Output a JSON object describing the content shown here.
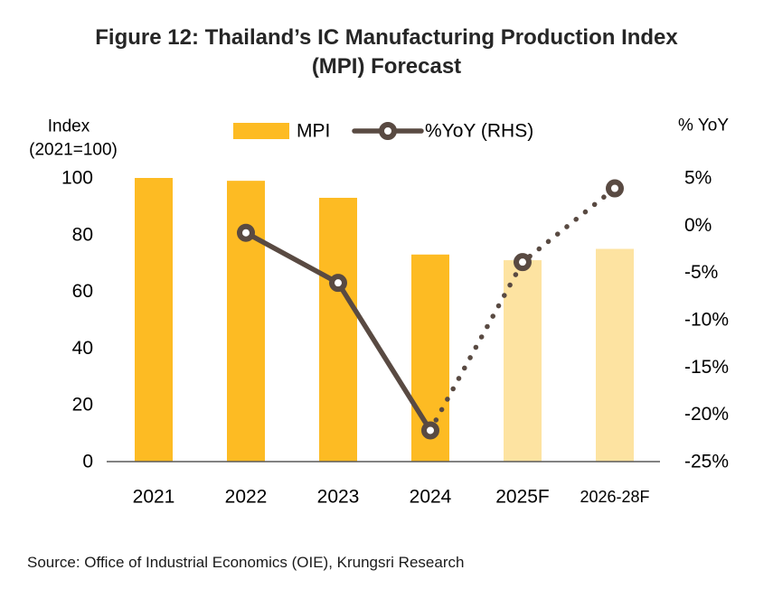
{
  "title": {
    "line1": "Figure 12: Thailand’s IC Manufacturing Production Index",
    "line2": "(MPI) Forecast"
  },
  "source": "Source: Office of Industrial Economics (OIE), Krungsri Research",
  "chart_data": {
    "type": "bar+line combo",
    "categories": [
      "2021",
      "2022",
      "2023",
      "2024",
      "2025F",
      "2026-28F"
    ],
    "series": [
      {
        "name": "MPI",
        "type": "bar",
        "axis": "left",
        "values": [
          100,
          99,
          93,
          73,
          71,
          75
        ],
        "forecast": [
          false,
          false,
          false,
          false,
          true,
          true
        ]
      },
      {
        "name": "%YoY (RHS)",
        "type": "line",
        "axis": "right",
        "values": [
          null,
          -0.8,
          -6.1,
          -21.7,
          -3.9,
          3.9
        ],
        "line_style": "solid through 2024, dotted for forecast points"
      }
    ],
    "left_axis": {
      "title_line1": "Index",
      "title_line2": "(2021=100)",
      "min": 0,
      "max": 100,
      "ticks": [
        {
          "label": "100",
          "value": 100
        },
        {
          "label": "80",
          "value": 80
        },
        {
          "label": "60",
          "value": 60
        },
        {
          "label": "40",
          "value": 40
        },
        {
          "label": "20",
          "value": 20
        },
        {
          "label": "0",
          "value": 0
        }
      ]
    },
    "right_axis": {
      "title": "% YoY",
      "min": -25,
      "max": 5,
      "ticks": [
        {
          "label": "5%",
          "value": 5
        },
        {
          "label": "0%",
          "value": 0
        },
        {
          "label": "-5%",
          "value": -5
        },
        {
          "label": "-10%",
          "value": -10
        },
        {
          "label": "-15%",
          "value": -15
        },
        {
          "label": "-20%",
          "value": -20
        },
        {
          "label": "-25%",
          "value": -25
        }
      ]
    },
    "legend_position": "top-center",
    "grid": false
  },
  "colors": {
    "bar": "#FDBB23",
    "bar_forecast": "#FDE3A1",
    "line": "#594A42",
    "axis_line": "#595959",
    "title_text": "#262626",
    "text": "#000000"
  }
}
